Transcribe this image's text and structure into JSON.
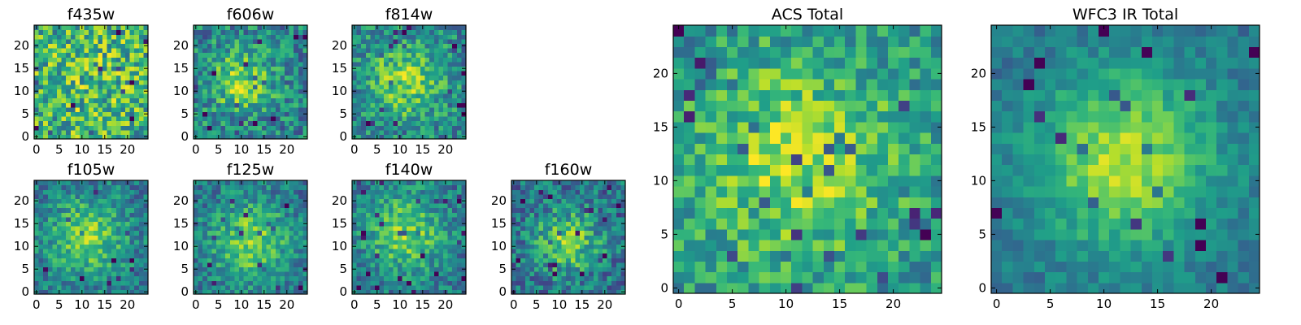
{
  "chart_data": [
    {
      "type": "heatmap",
      "title": "f435w",
      "peak": [
        12,
        12
      ],
      "width": 14,
      "contrast": 0.15,
      "noise": 0.45,
      "base": 0.55,
      "ticks_x": [
        0,
        5,
        10,
        15,
        20
      ],
      "ticks_y": [
        0,
        5,
        10,
        15,
        20
      ],
      "grid_size": 25,
      "colormap": "viridis"
    },
    {
      "type": "heatmap",
      "title": "f606w",
      "peak": [
        10,
        12
      ],
      "width": 5,
      "contrast": 0.35,
      "noise": 0.35,
      "base": 0.45,
      "ticks_x": [
        0,
        5,
        10,
        15,
        20
      ],
      "ticks_y": [
        0,
        5,
        10,
        15,
        20
      ],
      "grid_size": 25,
      "colormap": "viridis"
    },
    {
      "type": "heatmap",
      "title": "f814w",
      "peak": [
        11,
        12
      ],
      "width": 6,
      "contrast": 0.35,
      "noise": 0.33,
      "base": 0.45,
      "ticks_x": [
        0,
        5,
        10,
        15,
        20
      ],
      "ticks_y": [
        0,
        5,
        10,
        15,
        20
      ],
      "grid_size": 25,
      "colormap": "viridis"
    },
    {
      "type": "heatmap",
      "title": "f105w",
      "peak": [
        11,
        12
      ],
      "width": 6,
      "contrast": 0.4,
      "noise": 0.28,
      "base": 0.4,
      "ticks_x": [
        0,
        5,
        10,
        15,
        20
      ],
      "ticks_y": [
        0,
        5,
        10,
        15,
        20
      ],
      "grid_size": 25,
      "colormap": "viridis"
    },
    {
      "type": "heatmap",
      "title": "f125w",
      "peak": [
        12,
        11
      ],
      "width": 6,
      "contrast": 0.4,
      "noise": 0.28,
      "base": 0.4,
      "ticks_x": [
        0,
        5,
        10,
        15,
        20
      ],
      "ticks_y": [
        0,
        5,
        10,
        15,
        20
      ],
      "grid_size": 25,
      "colormap": "viridis"
    },
    {
      "type": "heatmap",
      "title": "f140w",
      "peak": [
        11,
        13
      ],
      "width": 6,
      "contrast": 0.4,
      "noise": 0.28,
      "base": 0.4,
      "ticks_x": [
        0,
        5,
        10,
        15,
        20
      ],
      "ticks_y": [
        0,
        5,
        10,
        15,
        20
      ],
      "grid_size": 25,
      "colormap": "viridis"
    },
    {
      "type": "heatmap",
      "title": "f160w",
      "peak": [
        12,
        11
      ],
      "width": 5,
      "contrast": 0.4,
      "noise": 0.32,
      "base": 0.38,
      "ticks_x": [
        0,
        5,
        10,
        15,
        20
      ],
      "ticks_y": [
        0,
        5,
        10,
        15,
        20
      ],
      "grid_size": 25,
      "colormap": "viridis"
    },
    {
      "type": "heatmap",
      "title": "ACS Total",
      "peak": [
        11,
        12
      ],
      "width": 7,
      "contrast": 0.35,
      "noise": 0.3,
      "base": 0.5,
      "ticks_x": [
        0,
        5,
        10,
        15,
        20
      ],
      "ticks_y": [
        0,
        5,
        10,
        15,
        20
      ],
      "grid_size": 25,
      "colormap": "viridis"
    },
    {
      "type": "heatmap",
      "title": "WFC3 IR Total",
      "peak": [
        12,
        12
      ],
      "width": 6,
      "contrast": 0.5,
      "noise": 0.16,
      "base": 0.38,
      "ticks_x": [
        0,
        5,
        10,
        15,
        20
      ],
      "ticks_y": [
        0,
        5,
        10,
        15,
        20
      ],
      "grid_size": 25,
      "colormap": "viridis"
    }
  ]
}
